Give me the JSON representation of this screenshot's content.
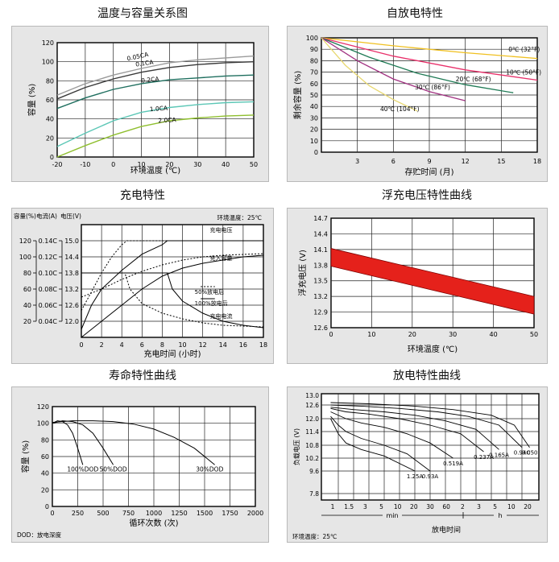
{
  "chart_data": [
    {
      "type": "line",
      "title": "温度与容量关系图",
      "xlabel": "环境温度 (℃)",
      "ylabel": "容量 (%)",
      "xticks": [
        -20,
        -10,
        0,
        10,
        20,
        30,
        40,
        50
      ],
      "yticks": [
        0,
        20,
        40,
        60,
        80,
        100,
        120
      ],
      "xlim": [
        -20,
        50
      ],
      "ylim": [
        0,
        120
      ],
      "grid": true,
      "series": [
        {
          "name": "0.05CA",
          "x": [
            -20,
            -10,
            0,
            10,
            20,
            30,
            40,
            50
          ],
          "y": [
            65,
            77,
            86,
            93,
            99,
            102,
            104,
            106
          ],
          "color": "#9a9a9a"
        },
        {
          "name": "0.1CA",
          "x": [
            -20,
            -10,
            0,
            10,
            20,
            30,
            40,
            50
          ],
          "y": [
            61,
            73,
            82,
            89,
            94,
            97,
            99,
            100
          ],
          "color": "#3a3a3a"
        },
        {
          "name": "0.2CA",
          "x": [
            -20,
            -10,
            0,
            10,
            20,
            30,
            40,
            50
          ],
          "y": [
            51,
            62,
            71,
            77,
            81,
            83,
            85,
            86
          ],
          "color": "#1f6f5f"
        },
        {
          "name": "1.0CA",
          "x": [
            -20,
            -10,
            0,
            10,
            20,
            30,
            40,
            50
          ],
          "y": [
            11,
            25,
            38,
            47,
            52,
            55,
            57,
            58
          ],
          "color": "#5cc7b6"
        },
        {
          "name": "2.0CA",
          "x": [
            -20,
            -10,
            0,
            10,
            20,
            30,
            40,
            50
          ],
          "y": [
            0,
            12,
            23,
            32,
            38,
            41,
            43,
            44
          ],
          "color": "#8fbf2f"
        }
      ]
    },
    {
      "type": "line",
      "title": "自放电特性",
      "xlabel": "存贮时间 (月)",
      "ylabel": "剩余容量 (%)",
      "xticks": [
        3,
        6,
        9,
        12,
        15,
        18
      ],
      "yticks": [
        0,
        10,
        20,
        30,
        40,
        50,
        60,
        70,
        80,
        90,
        100
      ],
      "xlim": [
        0,
        18
      ],
      "ylim": [
        0,
        100
      ],
      "grid": true,
      "series": [
        {
          "name": "0℃ (32°F)",
          "x": [
            0,
            6,
            12,
            18
          ],
          "y": [
            100,
            93,
            87,
            82
          ],
          "color": "#f0c020"
        },
        {
          "name": "10℃ (50°F)",
          "x": [
            0,
            6,
            12,
            18
          ],
          "y": [
            100,
            84,
            72,
            63
          ],
          "color": "#e8306a"
        },
        {
          "name": "20℃ (68°F)",
          "x": [
            0,
            4,
            8,
            12,
            16
          ],
          "y": [
            100,
            83,
            69,
            59,
            52
          ],
          "color": "#1f7a55"
        },
        {
          "name": "30℃ (86°F)",
          "x": [
            0,
            3,
            6,
            9,
            12
          ],
          "y": [
            100,
            80,
            64,
            53,
            45
          ],
          "color": "#a03080"
        },
        {
          "name": "40℃ (104°F)",
          "x": [
            0,
            2,
            4,
            6,
            8
          ],
          "y": [
            100,
            76,
            58,
            46,
            36
          ],
          "color": "#e8d870"
        }
      ]
    },
    {
      "type": "line",
      "title": "充电特性",
      "xlabel": "充电时间 (小时)",
      "xticks": [
        0,
        2,
        4,
        6,
        8,
        10,
        12,
        14,
        16,
        18
      ],
      "xlim": [
        0,
        18
      ],
      "grid": true,
      "axis_titles": {
        "capacity": "容量(%)",
        "current": "电流(A)",
        "voltage": "电压(V)"
      },
      "capacity_ticks": [
        20,
        40,
        60,
        80,
        100,
        120
      ],
      "current_ticks": [
        "0.04C",
        "0.06C",
        "0.08C",
        "0.10C",
        "0.12C",
        "0.14C"
      ],
      "voltage_ticks": [
        "12.0",
        "12.6",
        "13.2",
        "13.8",
        "14.4",
        "15.0"
      ],
      "ambient": "环境温度：25℃",
      "labels": {
        "voltage": "充电电压",
        "capacity": "充入容量",
        "d50": "50%放电后",
        "d100": "100%放电后",
        "current": "充电电流"
      },
      "series": [
        {
          "name": "charge-voltage-100",
          "x": [
            0,
            1,
            2,
            4,
            6,
            8,
            8.5,
            12,
            18
          ],
          "y": [
            11.7,
            12.6,
            13.2,
            13.9,
            14.5,
            14.85,
            15.0,
            15.0,
            15.0
          ]
        },
        {
          "name": "charge-voltage-50",
          "x": [
            0,
            1,
            2,
            3,
            4,
            4.5,
            8,
            12,
            18
          ],
          "y": [
            12.4,
            13.1,
            13.8,
            14.4,
            14.85,
            15.0,
            15.0,
            15.0,
            15.0
          ],
          "style": "dashed"
        },
        {
          "name": "capacity-100",
          "x": [
            0,
            2,
            4,
            6,
            8,
            10,
            12,
            14,
            16,
            18
          ],
          "y": [
            0,
            20,
            40,
            60,
            76,
            86,
            92,
            96,
            100,
            102
          ]
        },
        {
          "name": "capacity-50",
          "x": [
            0,
            2,
            4,
            6,
            8,
            10,
            12,
            14,
            16,
            18
          ],
          "y": [
            50,
            60,
            72,
            82,
            90,
            96,
            100,
            102,
            103,
            104
          ],
          "style": "dashed"
        },
        {
          "name": "current-100",
          "x": [
            0,
            8.5,
            9,
            10,
            12,
            14,
            16,
            18
          ],
          "y": [
            0.1,
            0.1,
            0.08,
            0.065,
            0.05,
            0.04,
            0.035,
            0.032
          ]
        },
        {
          "name": "current-50",
          "x": [
            0,
            4.3,
            4.8,
            6,
            8,
            10,
            12,
            14,
            16,
            18
          ],
          "y": [
            0.1,
            0.1,
            0.08,
            0.062,
            0.05,
            0.043,
            0.038,
            0.035,
            0.034,
            0.033
          ],
          "style": "dashed"
        }
      ]
    },
    {
      "type": "area",
      "title": "浮充电压特性曲线",
      "xlabel": "环境温度 (℃)",
      "ylabel": "浮充电压 (V)",
      "xticks": [
        0,
        10,
        20,
        30,
        40,
        50
      ],
      "yticks": [
        "12.6",
        "12.9",
        "13.2",
        "13.5",
        "13.8",
        "14.1",
        "14.4",
        "14.7"
      ],
      "xlim": [
        0,
        50
      ],
      "ylim": [
        12.6,
        14.7
      ],
      "grid": true,
      "band": {
        "x": [
          0,
          50
        ],
        "upper": [
          14.12,
          13.2
        ],
        "lower": [
          13.78,
          12.86
        ],
        "color": "#e5211b"
      }
    },
    {
      "type": "line",
      "title": "寿命特性曲线",
      "xlabel": "循环次数 (次)",
      "ylabel": "容量 (%)",
      "xticks": [
        0,
        250,
        500,
        750,
        1000,
        1250,
        1500,
        1750,
        2000
      ],
      "yticks": [
        0,
        20,
        40,
        60,
        80,
        100,
        120
      ],
      "xlim": [
        0,
        2000
      ],
      "ylim": [
        0,
        120
      ],
      "grid": true,
      "note": "DOD：放电深度",
      "series": [
        {
          "name": "100%DOD",
          "x": [
            0,
            50,
            100,
            150,
            200,
            250,
            300
          ],
          "y": [
            100,
            103,
            102,
            98,
            88,
            70,
            50
          ]
        },
        {
          "name": "50%DOD",
          "x": [
            0,
            100,
            200,
            300,
            400,
            500,
            600
          ],
          "y": [
            100,
            103,
            102,
            98,
            88,
            70,
            50
          ]
        },
        {
          "name": "30%DOD",
          "x": [
            0,
            200,
            400,
            600,
            800,
            1000,
            1200,
            1400,
            1600
          ],
          "y": [
            101,
            103,
            103,
            102,
            99,
            93,
            83,
            70,
            50
          ]
        }
      ]
    },
    {
      "type": "line",
      "title": "放电特性曲线",
      "xlabel": "放电时间",
      "ylabel": "负载电压 (V)",
      "xticks": [
        "1",
        "1.5",
        "3",
        "5",
        "10",
        "20",
        "30",
        "60",
        "2",
        "3",
        "5",
        "10",
        "20"
      ],
      "unit_min": "min",
      "unit_h": "h",
      "yticks": [
        "7.8",
        "9.6",
        "10.2",
        "10.8",
        "11.4",
        "12.0",
        "12.6",
        "13.0"
      ],
      "ambient": "环境温度：25℃",
      "series": [
        {
          "name": "1.25A",
          "x": [
            1,
            2,
            3,
            5,
            8,
            12
          ],
          "y": [
            12.0,
            11.3,
            10.9,
            10.6,
            10.3,
            9.6
          ]
        },
        {
          "name": "0.93A",
          "x": [
            1,
            2,
            3,
            5,
            8,
            11,
            14
          ],
          "y": [
            12.1,
            11.7,
            11.4,
            11.1,
            10.8,
            10.4,
            9.6
          ]
        },
        {
          "name": "0.519A",
          "x": [
            1,
            3,
            5,
            8,
            11,
            14,
            17
          ],
          "y": [
            12.3,
            12.0,
            11.8,
            11.6,
            11.3,
            10.9,
            10.2
          ]
        },
        {
          "name": "0.237A",
          "x": [
            1,
            3,
            6,
            10,
            14,
            18,
            21
          ],
          "y": [
            12.45,
            12.3,
            12.2,
            12.0,
            11.7,
            11.3,
            10.5
          ]
        },
        {
          "name": "0.165A",
          "x": [
            1,
            4,
            8,
            12,
            16,
            20,
            23
          ],
          "y": [
            12.5,
            12.4,
            12.3,
            12.15,
            11.9,
            11.5,
            10.6
          ]
        },
        {
          "name": "0.94C",
          "x": [
            1,
            5,
            10,
            15,
            19,
            23,
            26
          ],
          "y": [
            12.6,
            12.55,
            12.45,
            12.3,
            12.1,
            11.7,
            10.7
          ]
        },
        {
          "name": "0.050",
          "x": [
            1,
            6,
            12,
            17,
            22,
            25,
            27
          ],
          "y": [
            12.7,
            12.65,
            12.55,
            12.4,
            12.15,
            11.7,
            10.7
          ]
        }
      ]
    }
  ]
}
